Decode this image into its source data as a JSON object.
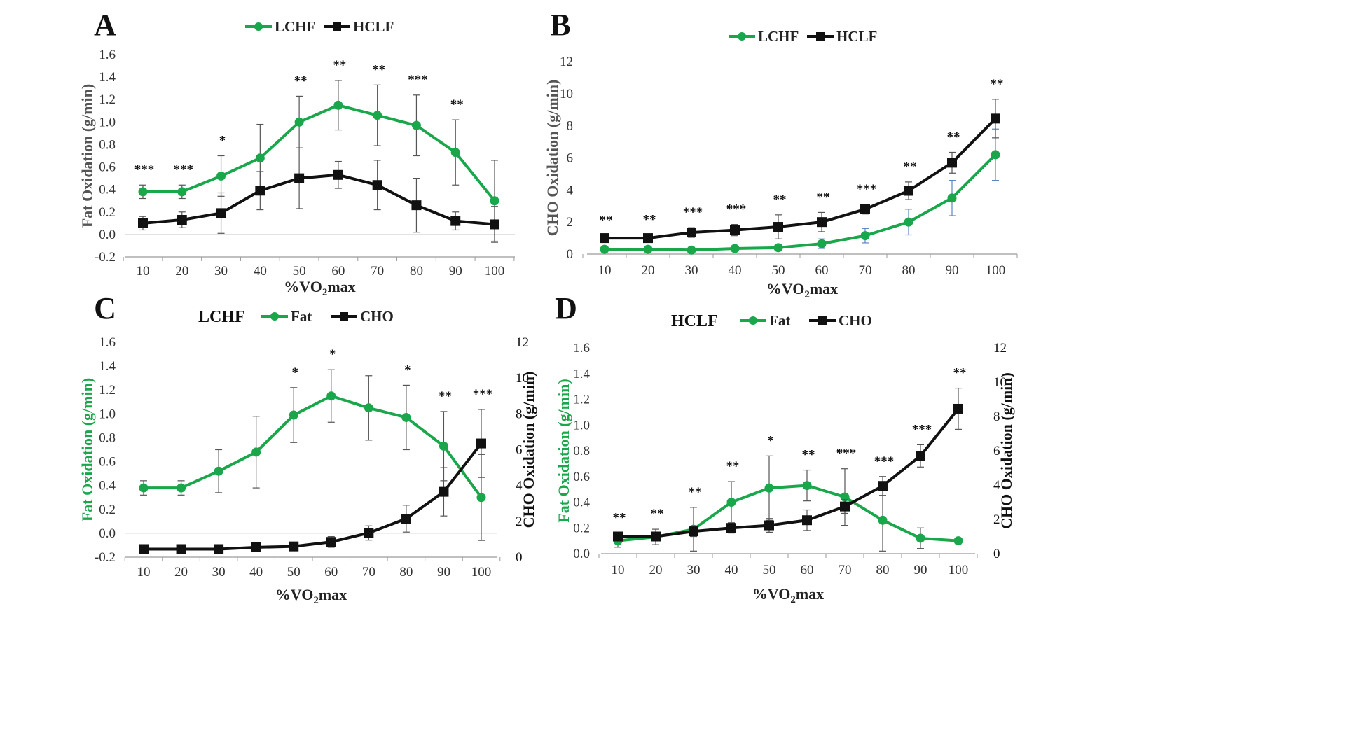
{
  "colors": {
    "green": "#1aa64a",
    "black": "#111111",
    "blue_err": "#5b86c5",
    "axis": "#9a9a9a"
  },
  "chart_data": [
    {
      "panel": "A",
      "type": "line",
      "x": [
        10,
        20,
        30,
        40,
        50,
        60,
        70,
        80,
        90,
        100
      ],
      "xtick_labels": [
        "10",
        "20",
        "30",
        "40",
        "50",
        "60",
        "70",
        "80",
        "90",
        "100"
      ],
      "xlabel": "%VO2max",
      "ylabel": "Fat Oxidation (g/min)",
      "ylim": [
        -0.2,
        1.6
      ],
      "ytick_labels": [
        "-0.2",
        "0.0",
        "0.2",
        "0.4",
        "0.6",
        "0.8",
        "1.0",
        "1.2",
        "1.4",
        "1.6"
      ],
      "legend_title": "",
      "legend": [
        "LCHF",
        "HCLF"
      ],
      "series": [
        {
          "name": "LCHF",
          "color": "#1aa64a",
          "marker": "circle",
          "values": [
            0.38,
            0.38,
            0.52,
            0.68,
            1.0,
            1.15,
            1.06,
            0.97,
            0.73,
            0.3
          ],
          "errors": [
            0.06,
            0.06,
            0.18,
            0.3,
            0.23,
            0.22,
            0.27,
            0.27,
            0.29,
            0.36
          ]
        },
        {
          "name": "HCLF",
          "color": "#111111",
          "marker": "square",
          "values": [
            0.1,
            0.13,
            0.19,
            0.39,
            0.5,
            0.53,
            0.44,
            0.26,
            0.12,
            0.09
          ],
          "errors": [
            0.06,
            0.07,
            0.18,
            0.17,
            0.27,
            0.12,
            0.22,
            0.24,
            0.08,
            0.16
          ]
        }
      ],
      "annotations": [
        "***",
        "***",
        "*",
        "",
        "**",
        "**",
        "**",
        "***",
        "**",
        ""
      ]
    },
    {
      "panel": "B",
      "type": "line",
      "x": [
        10,
        20,
        30,
        40,
        50,
        60,
        70,
        80,
        90,
        100
      ],
      "xtick_labels": [
        "10",
        "20",
        "30",
        "40",
        "50",
        "60",
        "70",
        "80",
        "90",
        "100"
      ],
      "xlabel": "%VO2max",
      "ylabel": "CHO Oxidation (g/min)",
      "ylim": [
        0,
        12
      ],
      "ytick_labels": [
        "0",
        "2",
        "4",
        "6",
        "8",
        "10",
        "12"
      ],
      "legend_title": "",
      "legend": [
        "LCHF",
        "HCLF"
      ],
      "series": [
        {
          "name": "LCHF",
          "color": "#1aa64a",
          "marker": "circle",
          "values": [
            0.3,
            0.3,
            0.25,
            0.35,
            0.4,
            0.65,
            1.15,
            2.0,
            3.5,
            6.2
          ],
          "errors": [
            0.1,
            0.1,
            0.1,
            0.15,
            0.2,
            0.3,
            0.45,
            0.8,
            1.1,
            1.6
          ]
        },
        {
          "name": "HCLF",
          "color": "#111111",
          "marker": "square",
          "values": [
            1.0,
            1.0,
            1.35,
            1.5,
            1.7,
            2.0,
            2.8,
            3.95,
            5.7,
            8.45
          ],
          "errors": [
            0.15,
            0.2,
            0.3,
            0.35,
            0.75,
            0.6,
            0.3,
            0.55,
            0.65,
            1.2
          ]
        }
      ],
      "annotations": [
        "**",
        "**",
        "***",
        "***",
        "**",
        "**",
        "***",
        "**",
        "**",
        "**"
      ]
    },
    {
      "panel": "C",
      "type": "line",
      "x": [
        10,
        20,
        30,
        40,
        50,
        60,
        70,
        80,
        90,
        100
      ],
      "xtick_labels": [
        "10",
        "20",
        "30",
        "40",
        "50",
        "60",
        "70",
        "80",
        "90",
        "100"
      ],
      "xlabel": "%VO2max",
      "ylabel": "Fat Oxidation (g/min)",
      "y2label": "CHO Oxidation (g/min)",
      "ylim": [
        -0.2,
        1.6
      ],
      "y2lim": [
        0,
        12
      ],
      "ytick_labels": [
        "-0.2",
        "0.0",
        "0.2",
        "0.4",
        "0.6",
        "0.8",
        "1.0",
        "1.2",
        "1.4",
        "1.6"
      ],
      "y2tick_labels": [
        "0",
        "2",
        "4",
        "6",
        "8",
        "10",
        "12"
      ],
      "legend_title": "LCHF",
      "legend": [
        "Fat",
        "CHO"
      ],
      "series": [
        {
          "name": "Fat",
          "color": "#1aa64a",
          "marker": "circle",
          "axis": "left",
          "values": [
            0.38,
            0.38,
            0.52,
            0.68,
            0.99,
            1.15,
            1.05,
            0.97,
            0.73,
            0.3
          ],
          "errors": [
            0.06,
            0.06,
            0.18,
            0.3,
            0.23,
            0.22,
            0.27,
            0.27,
            0.29,
            0.36
          ]
        },
        {
          "name": "CHO",
          "color": "#111111",
          "marker": "square",
          "axis": "right",
          "values": [
            0.45,
            0.45,
            0.45,
            0.55,
            0.6,
            0.85,
            1.35,
            2.15,
            3.65,
            6.35
          ],
          "errors": [
            0.1,
            0.1,
            0.1,
            0.15,
            0.2,
            0.3,
            0.4,
            0.75,
            1.35,
            1.9
          ]
        }
      ],
      "annotations": [
        "",
        "",
        "",
        "",
        "*",
        "*",
        "",
        "*",
        "**",
        "***"
      ]
    },
    {
      "panel": "D",
      "type": "line",
      "x": [
        10,
        20,
        30,
        40,
        50,
        60,
        70,
        80,
        90,
        100
      ],
      "xtick_labels": [
        "10",
        "20",
        "30",
        "40",
        "50",
        "60",
        "70",
        "80",
        "90",
        "100"
      ],
      "xlabel": "%VO2max",
      "ylabel": "Fat Oxidation (g/min)",
      "y2label": "CHO Oxidation (g/min)",
      "ylim": [
        0,
        1.6
      ],
      "y2lim": [
        0,
        12
      ],
      "ytick_labels": [
        "0.0",
        "0.2",
        "0.4",
        "0.6",
        "0.8",
        "1.0",
        "1.2",
        "1.4",
        "1.6"
      ],
      "y2tick_labels": [
        "0",
        "2",
        "4",
        "6",
        "8",
        "10",
        "12"
      ],
      "legend_title": "HCLF",
      "legend": [
        "Fat",
        "CHO"
      ],
      "series": [
        {
          "name": "Fat",
          "color": "#1aa64a",
          "marker": "circle",
          "axis": "left",
          "values": [
            0.1,
            0.13,
            0.19,
            0.4,
            0.51,
            0.53,
            0.44,
            0.26,
            0.12,
            0.1
          ],
          "errors": [
            0.05,
            0.06,
            0.17,
            0.16,
            0.25,
            0.12,
            0.22,
            0.24,
            0.08,
            0.0
          ]
        },
        {
          "name": "CHO",
          "color": "#111111",
          "marker": "square",
          "axis": "right",
          "values": [
            1.0,
            1.0,
            1.3,
            1.5,
            1.65,
            1.95,
            2.75,
            3.95,
            5.7,
            8.45
          ],
          "errors": [
            0.2,
            0.2,
            0.3,
            0.3,
            0.4,
            0.6,
            0.4,
            0.55,
            0.65,
            1.2
          ]
        }
      ],
      "annotations": [
        "**",
        "**",
        "**",
        "**",
        "*",
        "**",
        "***",
        "***",
        "***",
        "**"
      ]
    }
  ]
}
